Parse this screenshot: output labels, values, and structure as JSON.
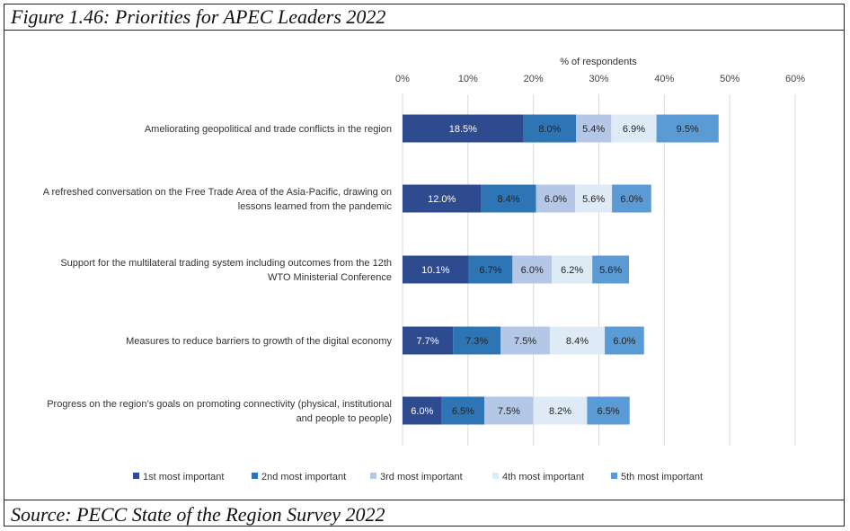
{
  "figure": {
    "title": "Figure 1.46: Priorities for APEC Leaders 2022",
    "source": "Source: PECC State of the Region Survey 2022"
  },
  "chart_data": {
    "type": "bar",
    "orientation": "horizontal",
    "stacked": true,
    "xlabel": "% of respondents",
    "ylabel": "",
    "xlim": [
      0,
      60
    ],
    "x_ticks": [
      "0%",
      "10%",
      "20%",
      "30%",
      "40%",
      "50%",
      "60%"
    ],
    "grid": true,
    "legend_position": "bottom",
    "categories": [
      [
        "Ameliorating geopolitical and trade conflicts in the region"
      ],
      [
        "A refreshed conversation on the Free Trade Area of the Asia-Pacific, drawing on",
        "lessons learned from the pandemic"
      ],
      [
        "Support for the multilateral trading system including outcomes from the 12th",
        "WTO Ministerial Conference"
      ],
      [
        "Measures to reduce barriers to growth of the digital economy"
      ],
      [
        "Progress on the region’s goals on promoting connectivity (physical, institutional",
        "and people to people)"
      ]
    ],
    "series": [
      {
        "name": "1st most important",
        "color": "#2f4b8f",
        "label_color": "#ffffff",
        "values": [
          18.5,
          12.0,
          10.1,
          7.7,
          6.0
        ],
        "labels": [
          "18.5%",
          "12.0%",
          "10.1%",
          "7.7%",
          "6.0%"
        ]
      },
      {
        "name": "2nd most important",
        "color": "#2e75b6",
        "label_color": "#222222",
        "values": [
          8.0,
          8.4,
          6.7,
          7.3,
          6.5
        ],
        "labels": [
          "8.0%",
          "8.4%",
          "6.7%",
          "7.3%",
          "6.5%"
        ]
      },
      {
        "name": "3rd most important",
        "color": "#b4c7e7",
        "label_color": "#222222",
        "values": [
          5.4,
          6.0,
          6.0,
          7.5,
          7.5
        ],
        "labels": [
          "5.4%",
          "6.0%",
          "6.0%",
          "7.5%",
          "7.5%"
        ]
      },
      {
        "name": "4th most important",
        "color": "#deebf7",
        "label_color": "#222222",
        "values": [
          6.9,
          5.6,
          6.2,
          8.4,
          8.2
        ],
        "labels": [
          "6.9%",
          "5.6%",
          "6.2%",
          "8.4%",
          "8.2%"
        ]
      },
      {
        "name": "5th most important",
        "color": "#5b9bd5",
        "label_color": "#222222",
        "values": [
          9.5,
          6.0,
          5.6,
          6.0,
          6.5
        ],
        "labels": [
          "9.5%",
          "6.0%",
          "5.6%",
          "6.0%",
          "6.5%"
        ]
      }
    ]
  }
}
